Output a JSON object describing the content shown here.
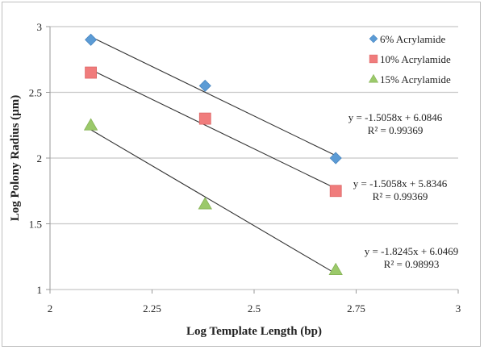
{
  "chart_data": {
    "type": "scatter",
    "title": "",
    "xlabel": "Log Template Length (bp)",
    "ylabel": "Log Polony Radius (µm)",
    "xlim": [
      2,
      3
    ],
    "ylim": [
      1,
      3
    ],
    "xticks": [
      "2",
      "2.25",
      "2.5",
      "2.75",
      "3"
    ],
    "yticks": [
      "1",
      "1.5",
      "2",
      "2.5",
      "3"
    ],
    "grid": "horizontal",
    "legend_position": "top-right",
    "series": [
      {
        "name": "6% Acrylamide",
        "marker": "diamond",
        "color": "#5b9bd5",
        "x": [
          2.1,
          2.38,
          2.7
        ],
        "y": [
          2.9,
          2.55,
          2.0
        ],
        "trendline": {
          "slope": -1.5058,
          "intercept": 6.0846,
          "equation": "y = -1.5058x + 6.0846",
          "r2": "R² = 0.99369"
        }
      },
      {
        "name": "10% Acrylamide",
        "marker": "square",
        "color": "#f07c7c",
        "x": [
          2.1,
          2.38,
          2.7
        ],
        "y": [
          2.65,
          2.3,
          1.75
        ],
        "trendline": {
          "slope": -1.5058,
          "intercept": 5.8346,
          "equation": "y = -1.5058x + 5.8346",
          "r2": "R² = 0.99369"
        }
      },
      {
        "name": "15% Acrylamide",
        "marker": "triangle",
        "color": "#9bc96a",
        "x": [
          2.1,
          2.38,
          2.7
        ],
        "y": [
          2.25,
          1.65,
          1.15
        ],
        "trendline": {
          "slope": -1.8245,
          "intercept": 6.0469,
          "equation": "y = -1.8245x + 6.0469",
          "r2": "R² = 0.98993"
        }
      }
    ]
  }
}
